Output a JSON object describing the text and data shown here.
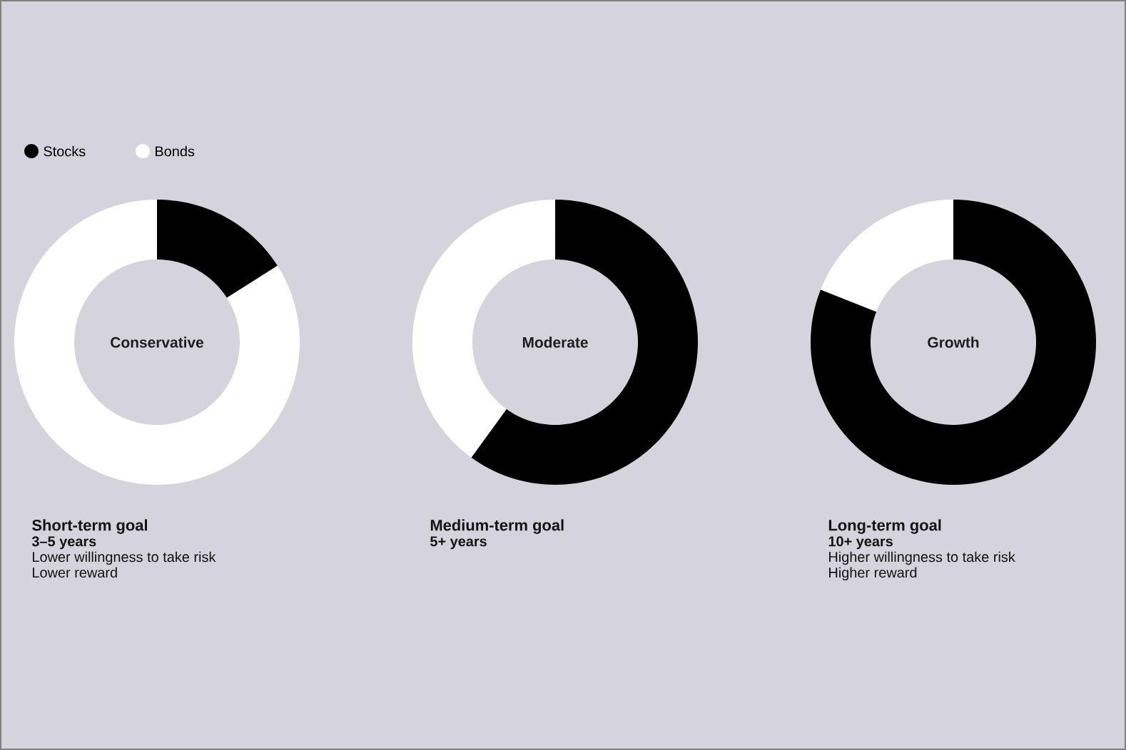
{
  "chart_data": [
    {
      "type": "donut",
      "title": "Conservative",
      "subtitle": "Short-term goal",
      "categories": [
        "Stocks",
        "Bonds"
      ],
      "values": [
        16,
        84
      ],
      "colors": [
        "#000000",
        "#ffffff"
      ],
      "annotations": [
        "**3–5 years**",
        "Lower willingness to take risk",
        "Lower reward"
      ],
      "legend": "top left"
    },
    {
      "type": "donut",
      "title": "Moderate",
      "subtitle": "Medium-term goal",
      "categories": [
        null,
        null
      ],
      "values": [
        60,
        40
      ],
      "colors": [
        "#000000",
        "#ffffff"
      ],
      "annotations": [
        "**5+ years**"
      ]
    },
    {
      "type": "donut",
      "title": "Growth",
      "subtitle": "Long-term goal",
      "categories": [
        null,
        null
      ],
      "values": [
        81,
        19
      ],
      "colors": [
        "#000000",
        "#ffffff"
      ],
      "annotations": [
        "**10+ years**",
        "Higher willingness to take risk",
        "Higher reward"
      ]
    }
  ]
}
